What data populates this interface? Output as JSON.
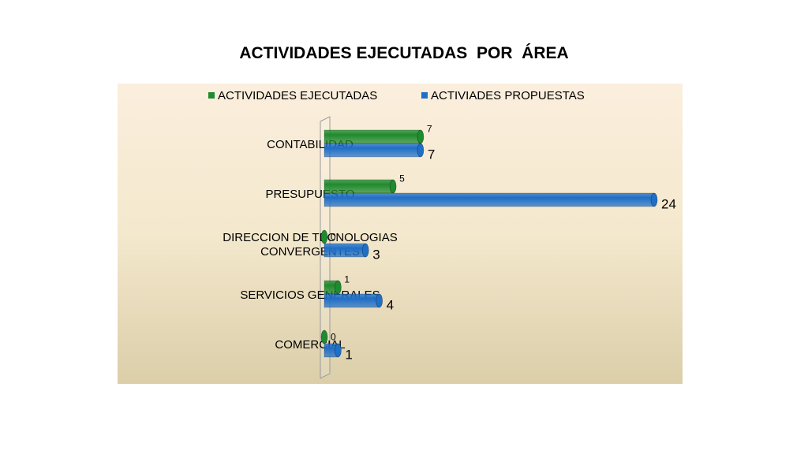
{
  "chart_data": {
    "type": "bar",
    "orientation": "horizontal",
    "style": "3d-cylinder",
    "title": "ACTIVIDADES EJECUTADAS  POR  ÁREA",
    "categories": [
      [
        "CONTABILIDAD"
      ],
      [
        "PRESUPUESTO"
      ],
      [
        "DIRECCION DE TECNOLOGIAS",
        "CONVERGENTES"
      ],
      [
        "SERVICIOS GENERALES"
      ],
      [
        "COMERCIAL"
      ]
    ],
    "series": [
      {
        "name": "ACTIVIDADES EJECUTADAS",
        "color": "#1f8a2e",
        "values": [
          7,
          5,
          0,
          1,
          0
        ]
      },
      {
        "name": "ACTIVIADES PROPUESTAS",
        "color": "#1f6fc7",
        "values": [
          7,
          24,
          3,
          4,
          1
        ]
      }
    ],
    "xlim": [
      0,
      24
    ],
    "legend": "top",
    "grid": false
  }
}
